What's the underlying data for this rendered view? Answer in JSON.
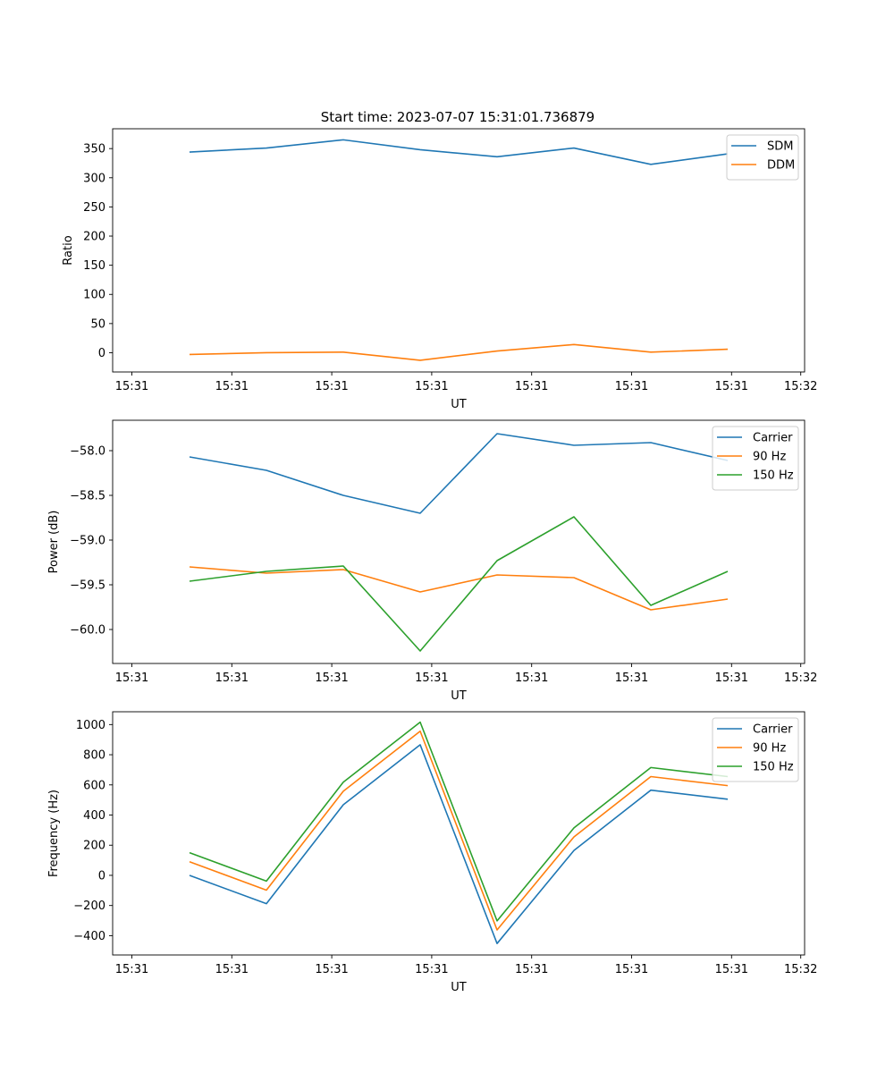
{
  "title": "Start time: 2023-07-07 15:31:01.736879",
  "x_tick_labels": [
    "15:31",
    "15:31",
    "15:31",
    "15:31",
    "15:31",
    "15:31",
    "15:31",
    "15:32"
  ],
  "chart_data": [
    {
      "type": "line",
      "title": "Start time: 2023-07-07 15:31:01.736879",
      "xlabel": "UT",
      "ylabel": "Ratio",
      "x": [
        1,
        2,
        3,
        4,
        5,
        6,
        7,
        8
      ],
      "xlim": [
        0.0,
        9.0
      ],
      "ylim": [
        -33,
        384
      ],
      "yticks": [
        0,
        50,
        100,
        150,
        200,
        250,
        300,
        350
      ],
      "ytick_labels": [
        "0",
        "50",
        "100",
        "150",
        "200",
        "250",
        "300",
        "350"
      ],
      "legend_loc": "upper right",
      "series": [
        {
          "name": "SDM",
          "color": "#1f77b4",
          "values": [
            344,
            351,
            365,
            348,
            336,
            351,
            323,
            341
          ]
        },
        {
          "name": "DDM",
          "color": "#ff7f0e",
          "values": [
            -3,
            0,
            1,
            -13,
            3,
            14,
            1,
            6
          ]
        }
      ]
    },
    {
      "type": "line",
      "xlabel": "UT",
      "ylabel": "Power (dB)",
      "x": [
        1,
        2,
        3,
        4,
        5,
        6,
        7,
        8
      ],
      "xlim": [
        0.0,
        9.0
      ],
      "ylim": [
        -60.38,
        -57.66
      ],
      "yticks": [
        -60.0,
        -59.5,
        -59.0,
        -58.5,
        -58.0
      ],
      "ytick_labels": [
        "−60.0",
        "−59.5",
        "−59.0",
        "−58.5",
        "−58.0"
      ],
      "legend_loc": "upper right",
      "series": [
        {
          "name": "Carrier",
          "color": "#1f77b4",
          "values": [
            -58.07,
            -58.22,
            -58.5,
            -58.7,
            -57.81,
            -57.94,
            -57.91,
            -58.11
          ]
        },
        {
          "name": "90 Hz",
          "color": "#ff7f0e",
          "values": [
            -59.3,
            -59.37,
            -59.33,
            -59.58,
            -59.39,
            -59.42,
            -59.78,
            -59.66
          ]
        },
        {
          "name": "150 Hz",
          "color": "#2ca02c",
          "values": [
            -59.46,
            -59.35,
            -59.29,
            -60.24,
            -59.23,
            -58.74,
            -59.73,
            -59.35
          ]
        }
      ]
    },
    {
      "type": "line",
      "xlabel": "UT",
      "ylabel": "Frequency (Hz)",
      "x": [
        1,
        2,
        3,
        4,
        5,
        6,
        7,
        8
      ],
      "xlim": [
        0.0,
        9.0
      ],
      "ylim": [
        -528,
        1085
      ],
      "yticks": [
        -400,
        -200,
        0,
        200,
        400,
        600,
        800,
        1000
      ],
      "ytick_labels": [
        "−400",
        "−200",
        "0",
        "200",
        "400",
        "600",
        "800",
        "1000"
      ],
      "legend_loc": "upper right",
      "series": [
        {
          "name": "Carrier",
          "color": "#1f77b4",
          "values": [
            0,
            -188,
            468,
            866,
            -452,
            165,
            565,
            505
          ]
        },
        {
          "name": "90 Hz",
          "color": "#ff7f0e",
          "values": [
            90,
            -98,
            558,
            956,
            -362,
            255,
            655,
            595
          ]
        },
        {
          "name": "150 Hz",
          "color": "#2ca02c",
          "values": [
            150,
            -38,
            618,
            1016,
            -302,
            315,
            715,
            655
          ]
        }
      ]
    }
  ]
}
